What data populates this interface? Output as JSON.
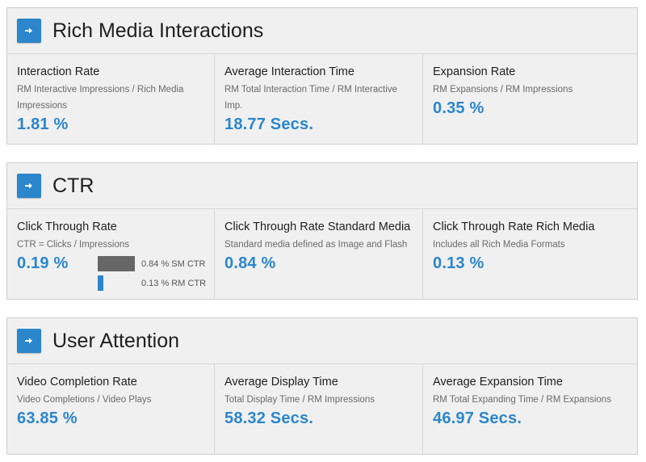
{
  "sections": [
    {
      "title": "Rich Media Interactions",
      "cards": [
        {
          "title": "Interaction Rate",
          "subtitle": "RM Interactive Impressions / Rich Media Impressions",
          "value": "1.81 %"
        },
        {
          "title": "Average Interaction Time",
          "subtitle": "RM Total Interaction Time / RM Interactive Imp.",
          "value": "18.77 Secs."
        },
        {
          "title": "Expansion Rate",
          "subtitle": "RM Expansions / RM Impressions",
          "value": "0.35 %"
        }
      ]
    },
    {
      "title": "CTR",
      "cards": [
        {
          "title": "Click Through Rate",
          "subtitle": "CTR = Clicks / Impressions",
          "value": "0.19 %"
        },
        {
          "title": "Click Through Rate Standard Media",
          "subtitle": "Standard media defined as Image and Flash",
          "value": "0.84 %"
        },
        {
          "title": "Click Through Rate Rich Media",
          "subtitle": "Includes all Rich Media Formats",
          "value": "0.13 %"
        }
      ],
      "mini_chart": {
        "bars": [
          {
            "label": "0.84 % SM CTR",
            "value": 0.84,
            "color": "#666666"
          },
          {
            "label": "0.13 % RM CTR",
            "value": 0.13,
            "color": "#2b86cc"
          }
        ],
        "max": 0.84
      }
    },
    {
      "title": "User Attention",
      "cards": [
        {
          "title": "Video Completion Rate",
          "subtitle": "Video Completions / Video Plays",
          "value": "63.85 %"
        },
        {
          "title": "Average Display Time",
          "subtitle": "Total Display Time / RM Impressions",
          "value": "58.32 Secs."
        },
        {
          "title": "Average Expansion Time",
          "subtitle": "RM Total Expanding Time / RM Expansions",
          "value": "46.97 Secs."
        }
      ]
    }
  ],
  "colors": {
    "accent": "#2b86cc",
    "sm_bar": "#666666"
  },
  "icons": {
    "section_button": "arrow-right-icon"
  }
}
